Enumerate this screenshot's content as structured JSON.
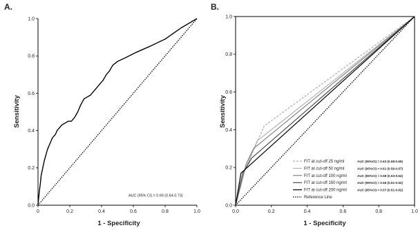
{
  "chart_data": [
    {
      "panel_label": "A.",
      "type": "line",
      "xlabel": "1 - Specificity",
      "ylabel": "Sensitivity",
      "xlim": [
        0,
        1
      ],
      "ylim": [
        0,
        1
      ],
      "x_ticks": [
        "0",
        "0.2",
        "0.4",
        "0.6",
        "0.8",
        "1.0"
      ],
      "y_ticks": [
        "0.0",
        "0.2",
        "0.4",
        "0.6",
        "0.8",
        "1.0"
      ],
      "x_tick_values": [
        0,
        0.2,
        0.4,
        0.6,
        0.8,
        1.0
      ],
      "y_tick_values": [
        0,
        0.2,
        0.4,
        0.6,
        0.8,
        1.0
      ],
      "annotation": "AUC (95% CI) = 0.69 (0.64-0.73)",
      "series": [
        {
          "style": "solid",
          "color": "#000000",
          "x": [
            0,
            0.003,
            0.008,
            0.015,
            0.02,
            0.03,
            0.04,
            0.05,
            0.06,
            0.07,
            0.08,
            0.09,
            0.1,
            0.11,
            0.12,
            0.14,
            0.15,
            0.17,
            0.19,
            0.21,
            0.23,
            0.25,
            0.27,
            0.29,
            0.31,
            0.33,
            0.35,
            0.37,
            0.39,
            0.41,
            0.43,
            0.45,
            0.47,
            0.5,
            0.55,
            0.62,
            0.7,
            0.8,
            0.9,
            1.0
          ],
          "y": [
            0,
            0.03,
            0.07,
            0.12,
            0.16,
            0.2,
            0.24,
            0.27,
            0.3,
            0.32,
            0.34,
            0.36,
            0.37,
            0.38,
            0.4,
            0.42,
            0.43,
            0.44,
            0.45,
            0.45,
            0.47,
            0.5,
            0.54,
            0.57,
            0.58,
            0.59,
            0.61,
            0.63,
            0.65,
            0.67,
            0.7,
            0.72,
            0.75,
            0.77,
            0.79,
            0.82,
            0.85,
            0.89,
            0.95,
            1.0
          ]
        },
        {
          "name": "Reference Line",
          "style": "dotted",
          "color": "#000000",
          "x": [
            0,
            1
          ],
          "y": [
            0,
            1
          ]
        }
      ]
    },
    {
      "panel_label": "B.",
      "type": "line",
      "xlabel": "1 - Specificity",
      "ylabel": "Sensitivity",
      "xlim": [
        0,
        1
      ],
      "ylim": [
        0,
        1
      ],
      "x_ticks": [
        "0.0",
        "0.2",
        "0.4",
        "0.6",
        "0.8",
        "1.0"
      ],
      "y_ticks": [
        "0.0",
        "0.2",
        "0.4",
        "0.6",
        "0.8",
        "1.0"
      ],
      "x_tick_values": [
        0,
        0.2,
        0.4,
        0.6,
        0.8,
        1.0
      ],
      "y_tick_values": [
        0,
        0.2,
        0.4,
        0.6,
        0.8,
        1.0
      ],
      "legend_position": "bottom-right",
      "series": [
        {
          "name": "FIT at cut-off 25 ng/ml",
          "auc": "AUC (95%CI) = 0.63 (0.58-0.69)",
          "style": "dashed",
          "color": "#b0b0b0",
          "x": [
            0,
            0.05,
            0.16,
            1.0
          ],
          "y": [
            0,
            0.18,
            0.42,
            1.0
          ]
        },
        {
          "name": "FIT at cut-off 50 ng/ml",
          "auc": "AUC (95%CI) = 0.61 (0.56-0.67)",
          "style": "solid",
          "color": "#b8b8b8",
          "x": [
            0,
            0.05,
            0.12,
            1.0
          ],
          "y": [
            0,
            0.18,
            0.34,
            1.0
          ]
        },
        {
          "name": "FIT at cut-off 100 ng/ml",
          "auc": "AUC (95%CI) = 0.58 (0.53-0.64)",
          "style": "solid",
          "color": "#8c8c8c",
          "x": [
            0,
            0.06,
            0.1,
            1.0
          ],
          "y": [
            0,
            0.22,
            0.3,
            1.0
          ]
        },
        {
          "name": "FIT at cut-off 150 ng/ml",
          "auc": "AUC (95%CI) = 0.56 (0.51-0.62)",
          "style": "solid",
          "color": "#555555",
          "x": [
            0,
            0.04,
            0.09,
            1.0
          ],
          "y": [
            0,
            0.17,
            0.25,
            1.0
          ]
        },
        {
          "name": "FIT at cut-off 200 ng/ml",
          "auc": "AUC (95%CI) = 0.57 (0.51-0.62)",
          "style": "solid",
          "color": "#111111",
          "x": [
            0,
            0.03,
            1.0
          ],
          "y": [
            0,
            0.17,
            1.0
          ]
        },
        {
          "name": "Reference Line",
          "style": "dotted",
          "color": "#000000",
          "x": [
            0,
            1
          ],
          "y": [
            0,
            1
          ]
        }
      ]
    }
  ]
}
